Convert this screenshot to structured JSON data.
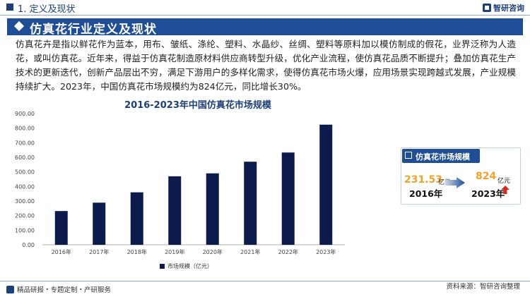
{
  "header": {
    "section_title": "1. 定义及现状",
    "brand_name": "智研咨询"
  },
  "title_band": {
    "title": "仿真花行业定义及现状"
  },
  "intro": {
    "text": "仿真花卉是指以鲜花作为蓝本，用布、皱纸、涤纶、塑料、水晶纱、丝绸、塑料等原料加以模仿制成的假花，业界泛称为人造花，或叫仿真花。近年来，得益于仿真花制造原材料供应商转型升级，优化产业流程，使仿真花品质不断提升；叠加仿真花生产技术的更新迭代，创新产品层出不穷，满足下游用户的多样化需求，使得仿真花市场火爆，应用场景实现跨越式发展，产业规模持续扩大。2023年，中国仿真花市场规模约为824亿元，同比增长30%。"
  },
  "chart_data": {
    "type": "bar",
    "title": "2016-2023年中国仿真花市场规模",
    "categories": [
      "2016年",
      "2017年",
      "2018年",
      "2019年",
      "2020年",
      "2021年",
      "2022年",
      "2023年"
    ],
    "series": [
      {
        "name": "市场规模（亿元）",
        "values": [
          231.53,
          289,
          360,
          470,
          490,
          570,
          633,
          824
        ]
      }
    ],
    "ylim": [
      0,
      900
    ],
    "yticks": [
      "0.00",
      "100.00",
      "200.00",
      "300.00",
      "400.00",
      "500.00",
      "600.00",
      "700.00",
      "800.00",
      "900.00"
    ],
    "ytick_values": [
      0,
      100,
      200,
      300,
      400,
      500,
      600,
      700,
      800,
      900
    ],
    "bar_color": "#0d1b4c",
    "legend_position": "bottom",
    "grid": false
  },
  "card": {
    "title": "仿真花市场规模",
    "start": {
      "value": "231.53",
      "unit": "亿元",
      "year": "2016年"
    },
    "end": {
      "value": "824",
      "unit": "亿元",
      "year": "2023年"
    },
    "value_color": "#f0a22b",
    "up_arrow_color": "#d42a1f"
  },
  "footer": {
    "left_text": "精品研报・专题定制・产研服务",
    "source_text": "资料来源：智研咨询整理"
  },
  "colors": {
    "brand_blue": "#1f4e96",
    "dark_navy": "#1c3f7a"
  }
}
